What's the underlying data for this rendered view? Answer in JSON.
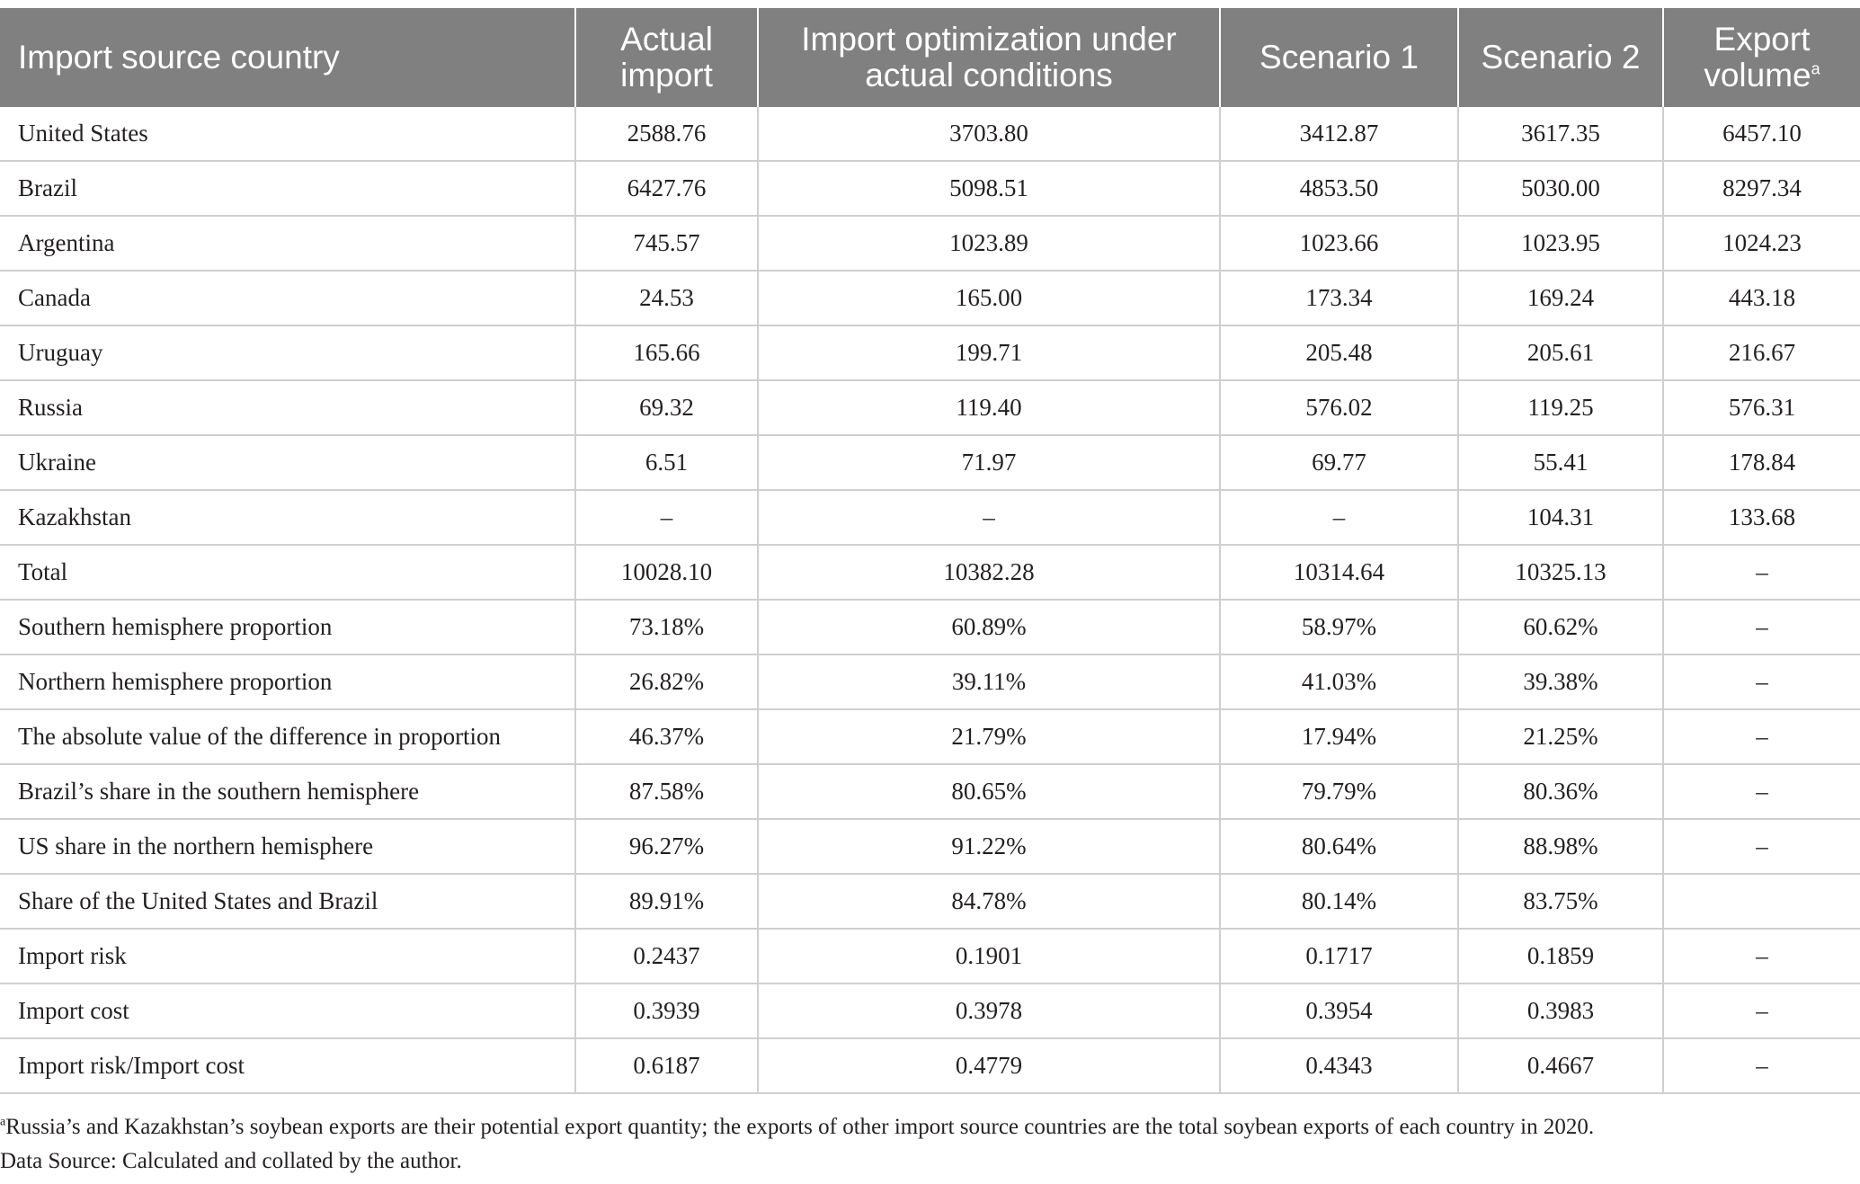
{
  "table": {
    "headers": [
      "Import source country",
      "Actual import",
      "Import optimization under actual conditions",
      "Scenario 1",
      "Scenario 2",
      "Export volume"
    ],
    "header_superscript": "a",
    "rows": [
      [
        "United States",
        "2588.76",
        "3703.80",
        "3412.87",
        "3617.35",
        "6457.10"
      ],
      [
        "Brazil",
        "6427.76",
        "5098.51",
        "4853.50",
        "5030.00",
        "8297.34"
      ],
      [
        "Argentina",
        "745.57",
        "1023.89",
        "1023.66",
        "1023.95",
        "1024.23"
      ],
      [
        "Canada",
        "24.53",
        "165.00",
        "173.34",
        "169.24",
        "443.18"
      ],
      [
        "Uruguay",
        "165.66",
        "199.71",
        "205.48",
        "205.61",
        "216.67"
      ],
      [
        "Russia",
        "69.32",
        "119.40",
        "576.02",
        "119.25",
        "576.31"
      ],
      [
        "Ukraine",
        "6.51",
        "71.97",
        "69.77",
        "55.41",
        "178.84"
      ],
      [
        "Kazakhstan",
        "–",
        "–",
        "–",
        "104.31",
        "133.68"
      ],
      [
        "Total",
        "10028.10",
        "10382.28",
        "10314.64",
        "10325.13",
        "–"
      ],
      [
        "Southern hemisphere proportion",
        "73.18%",
        "60.89%",
        "58.97%",
        "60.62%",
        "–"
      ],
      [
        "Northern hemisphere proportion",
        "26.82%",
        "39.11%",
        "41.03%",
        "39.38%",
        "–"
      ],
      [
        "The absolute value of the difference in proportion",
        "46.37%",
        "21.79%",
        "17.94%",
        "21.25%",
        "–"
      ],
      [
        "Brazil’s share in the southern hemisphere",
        "87.58%",
        "80.65%",
        "79.79%",
        "80.36%",
        "–"
      ],
      [
        "US share in the northern hemisphere",
        "96.27%",
        "91.22%",
        "80.64%",
        "88.98%",
        "–"
      ],
      [
        "Share of the United States and Brazil",
        "89.91%",
        "84.78%",
        "80.14%",
        "83.75%",
        ""
      ],
      [
        "Import risk",
        "0.2437",
        "0.1901",
        "0.1717",
        "0.1859",
        "–"
      ],
      [
        "Import cost",
        "0.3939",
        "0.3978",
        "0.3954",
        "0.3983",
        "–"
      ],
      [
        "Import risk/Import cost",
        "0.6187",
        "0.4779",
        "0.4343",
        "0.4667",
        "–"
      ]
    ]
  },
  "footnotes": {
    "marker": "a",
    "note": "Russia’s and Kazakhstan’s soybean exports are their potential export quantity; the exports of other import source countries are the total soybean exports of each country in 2020.",
    "source": "Data Source: Calculated and collated by the author."
  }
}
